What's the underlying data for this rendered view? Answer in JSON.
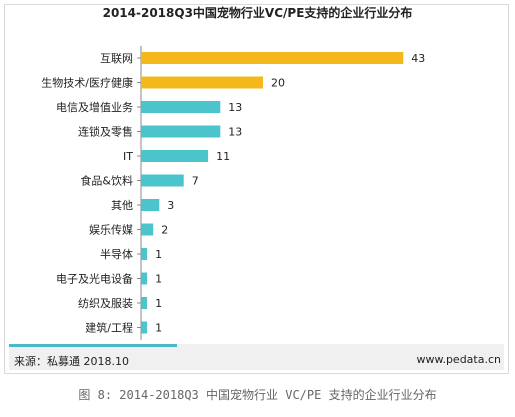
{
  "chart_data": {
    "type": "bar",
    "orientation": "horizontal",
    "title": "2014-2018Q3中国宠物行业VC/PE支持的企业行业分布",
    "categories": [
      "互联网",
      "生物技术/医疗健康",
      "电信及增值业务",
      "连锁及零售",
      "IT",
      "食品&饮料",
      "其他",
      "娱乐传媒",
      "半导体",
      "电子及光电设备",
      "纺织及服装",
      "建筑/工程"
    ],
    "values": [
      43,
      20,
      13,
      13,
      11,
      7,
      3,
      2,
      1,
      1,
      1,
      1
    ],
    "highlight_colors": [
      "#f5b81c",
      "#f5b81c",
      "#4bc4cc",
      "#4bc4cc",
      "#4bc4cc",
      "#4bc4cc",
      "#4bc4cc",
      "#4bc4cc",
      "#4bc4cc",
      "#4bc4cc",
      "#4bc4cc",
      "#4bc4cc"
    ],
    "xlim": [
      0,
      45
    ],
    "grid": false,
    "legend": "none"
  },
  "footer": {
    "source": "来源：私募通 2018.10",
    "site": "www.pedata.cn"
  },
  "caption": "图 8: 2014-2018Q3 中国宠物行业 VC/PE 支持的企业行业分布"
}
